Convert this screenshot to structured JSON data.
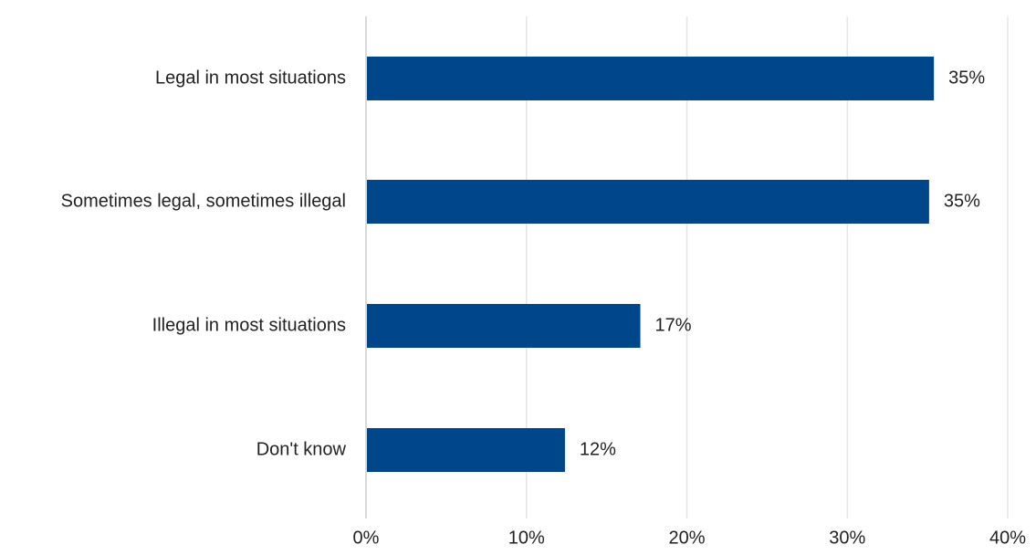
{
  "chart_data": {
    "type": "bar",
    "orientation": "horizontal",
    "categories": [
      "Legal in most situations",
      "Sometimes legal, sometimes illegal",
      "Illegal in most situations",
      "Don't know"
    ],
    "values": [
      35.4,
      35.1,
      17.1,
      12.4
    ],
    "data_labels": [
      "35%",
      "35%",
      "17%",
      "12%"
    ],
    "xlim": [
      0,
      40
    ],
    "x_ticks": [
      0,
      10,
      20,
      30,
      40
    ],
    "x_tick_labels": [
      "0%",
      "10%",
      "20%",
      "30%",
      "40%"
    ],
    "grid": true,
    "colors": {
      "bar": "#00468b",
      "grid": "#e6e6e6",
      "axis": "#d9d9d9",
      "text": "#222222"
    }
  }
}
